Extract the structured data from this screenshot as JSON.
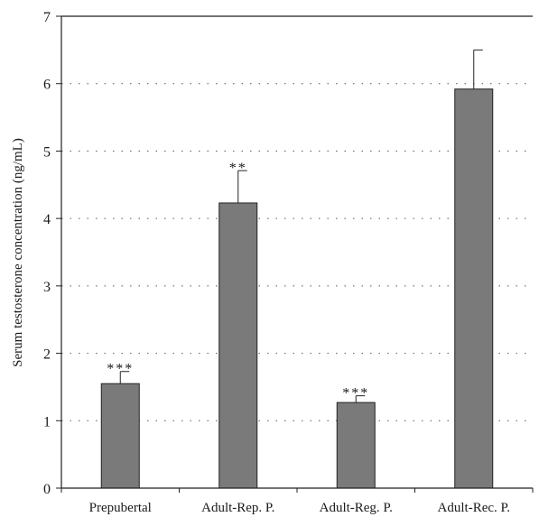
{
  "chart_data": {
    "type": "bar",
    "title": "",
    "xlabel": "",
    "ylabel": "Serum testosterone concentration (ng/mL)",
    "ylim": [
      0,
      7
    ],
    "yticks": [
      "0",
      "1",
      "2",
      "3",
      "4",
      "5",
      "6",
      "7"
    ],
    "grid": "horizontal-dotted",
    "categories": [
      "Prepubertal",
      "Adult-Rep. P.",
      "Adult-Reg. P.",
      "Adult-Rec. P."
    ],
    "values": [
      1.55,
      4.23,
      1.27,
      5.92
    ],
    "errors": [
      0.18,
      0.48,
      0.1,
      0.58
    ],
    "significance": [
      "***",
      "**",
      "***",
      ""
    ],
    "colors": {
      "bar": "#7a7a7a",
      "bar_edge": "#222222",
      "axis": "#222222",
      "grid": "#555555"
    }
  }
}
